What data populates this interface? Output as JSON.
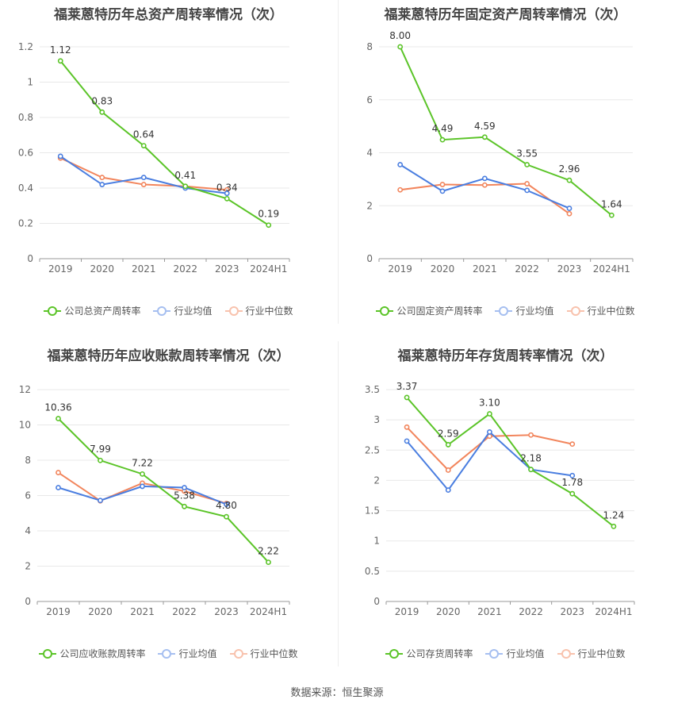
{
  "legend_labels": {
    "industry_avg": "行业均值",
    "industry_median": "行业中位数"
  },
  "colors": {
    "company": "#5bc428",
    "industry_avg": "#4a7ee0",
    "industry_median": "#f2855c"
  },
  "footer": "数据来源：恒生聚源",
  "chart_data": [
    {
      "type": "line",
      "title": "福莱蒽特历年总资产周转率情况（次）",
      "categories": [
        "2019",
        "2020",
        "2021",
        "2022",
        "2023",
        "2024H1"
      ],
      "ylim": [
        0,
        1.2
      ],
      "yticks": [
        "0",
        "0.2",
        "0.4",
        "0.6",
        "0.8",
        "1",
        "1.2"
      ],
      "series": [
        {
          "name": "公司总资产周转率",
          "values": [
            1.12,
            0.83,
            0.64,
            0.41,
            0.34,
            0.19
          ],
          "labels": [
            "1.12",
            "0.83",
            "0.64",
            "0.41",
            "0.34",
            "0.19"
          ]
        },
        {
          "name": "行业均值",
          "values": [
            0.58,
            0.42,
            0.46,
            0.4,
            0.37,
            null
          ]
        },
        {
          "name": "行业中位数",
          "values": [
            0.57,
            0.46,
            0.42,
            0.41,
            0.39,
            null
          ]
        }
      ]
    },
    {
      "type": "line",
      "title": "福莱蒽特历年固定资产周转率情况（次）",
      "categories": [
        "2019",
        "2020",
        "2021",
        "2022",
        "2023",
        "2024H1"
      ],
      "ylim": [
        0,
        8
      ],
      "yticks": [
        "0",
        "2",
        "4",
        "6",
        "8"
      ],
      "series": [
        {
          "name": "公司固定资产周转率",
          "values": [
            8.0,
            4.49,
            4.59,
            3.55,
            2.96,
            1.64
          ],
          "labels": [
            "8.00",
            "4.49",
            "4.59",
            "3.55",
            "2.96",
            "1.64"
          ]
        },
        {
          "name": "行业均值",
          "values": [
            3.55,
            2.55,
            3.03,
            2.58,
            1.9,
            null
          ]
        },
        {
          "name": "行业中位数",
          "values": [
            2.6,
            2.8,
            2.78,
            2.83,
            1.7,
            null
          ]
        }
      ]
    },
    {
      "type": "line",
      "title": "福莱蒽特历年应收账款周转率情况（次）",
      "categories": [
        "2019",
        "2020",
        "2021",
        "2022",
        "2023",
        "2024H1"
      ],
      "ylim": [
        0,
        12
      ],
      "yticks": [
        "0",
        "2",
        "4",
        "6",
        "8",
        "10",
        "12"
      ],
      "series": [
        {
          "name": "公司应收账款周转率",
          "values": [
            10.36,
            7.99,
            7.22,
            5.38,
            4.8,
            2.22
          ],
          "labels": [
            "10.36",
            "7.99",
            "7.22",
            "5.38",
            "4.80",
            "2.22"
          ]
        },
        {
          "name": "行业均值",
          "values": [
            6.45,
            5.72,
            6.52,
            6.45,
            5.5,
            null
          ]
        },
        {
          "name": "行业中位数",
          "values": [
            7.3,
            5.7,
            6.7,
            6.25,
            5.55,
            null
          ]
        }
      ]
    },
    {
      "type": "line",
      "title": "福莱蒽特历年存货周转率情况（次）",
      "categories": [
        "2019",
        "2020",
        "2021",
        "2022",
        "2023",
        "2024H1"
      ],
      "ylim": [
        0,
        3.5
      ],
      "yticks": [
        "0",
        "0.5",
        "1",
        "1.5",
        "2",
        "2.5",
        "3",
        "3.5"
      ],
      "series": [
        {
          "name": "公司存货周转率",
          "values": [
            3.37,
            2.59,
            3.1,
            2.18,
            1.78,
            1.24
          ],
          "labels": [
            "3.37",
            "2.59",
            "3.10",
            "2.18",
            "1.78",
            "1.24"
          ]
        },
        {
          "name": "行业均值",
          "values": [
            2.65,
            1.84,
            2.8,
            2.18,
            2.08,
            null
          ]
        },
        {
          "name": "行业中位数",
          "values": [
            2.88,
            2.17,
            2.73,
            2.75,
            2.6,
            null
          ]
        }
      ]
    }
  ]
}
